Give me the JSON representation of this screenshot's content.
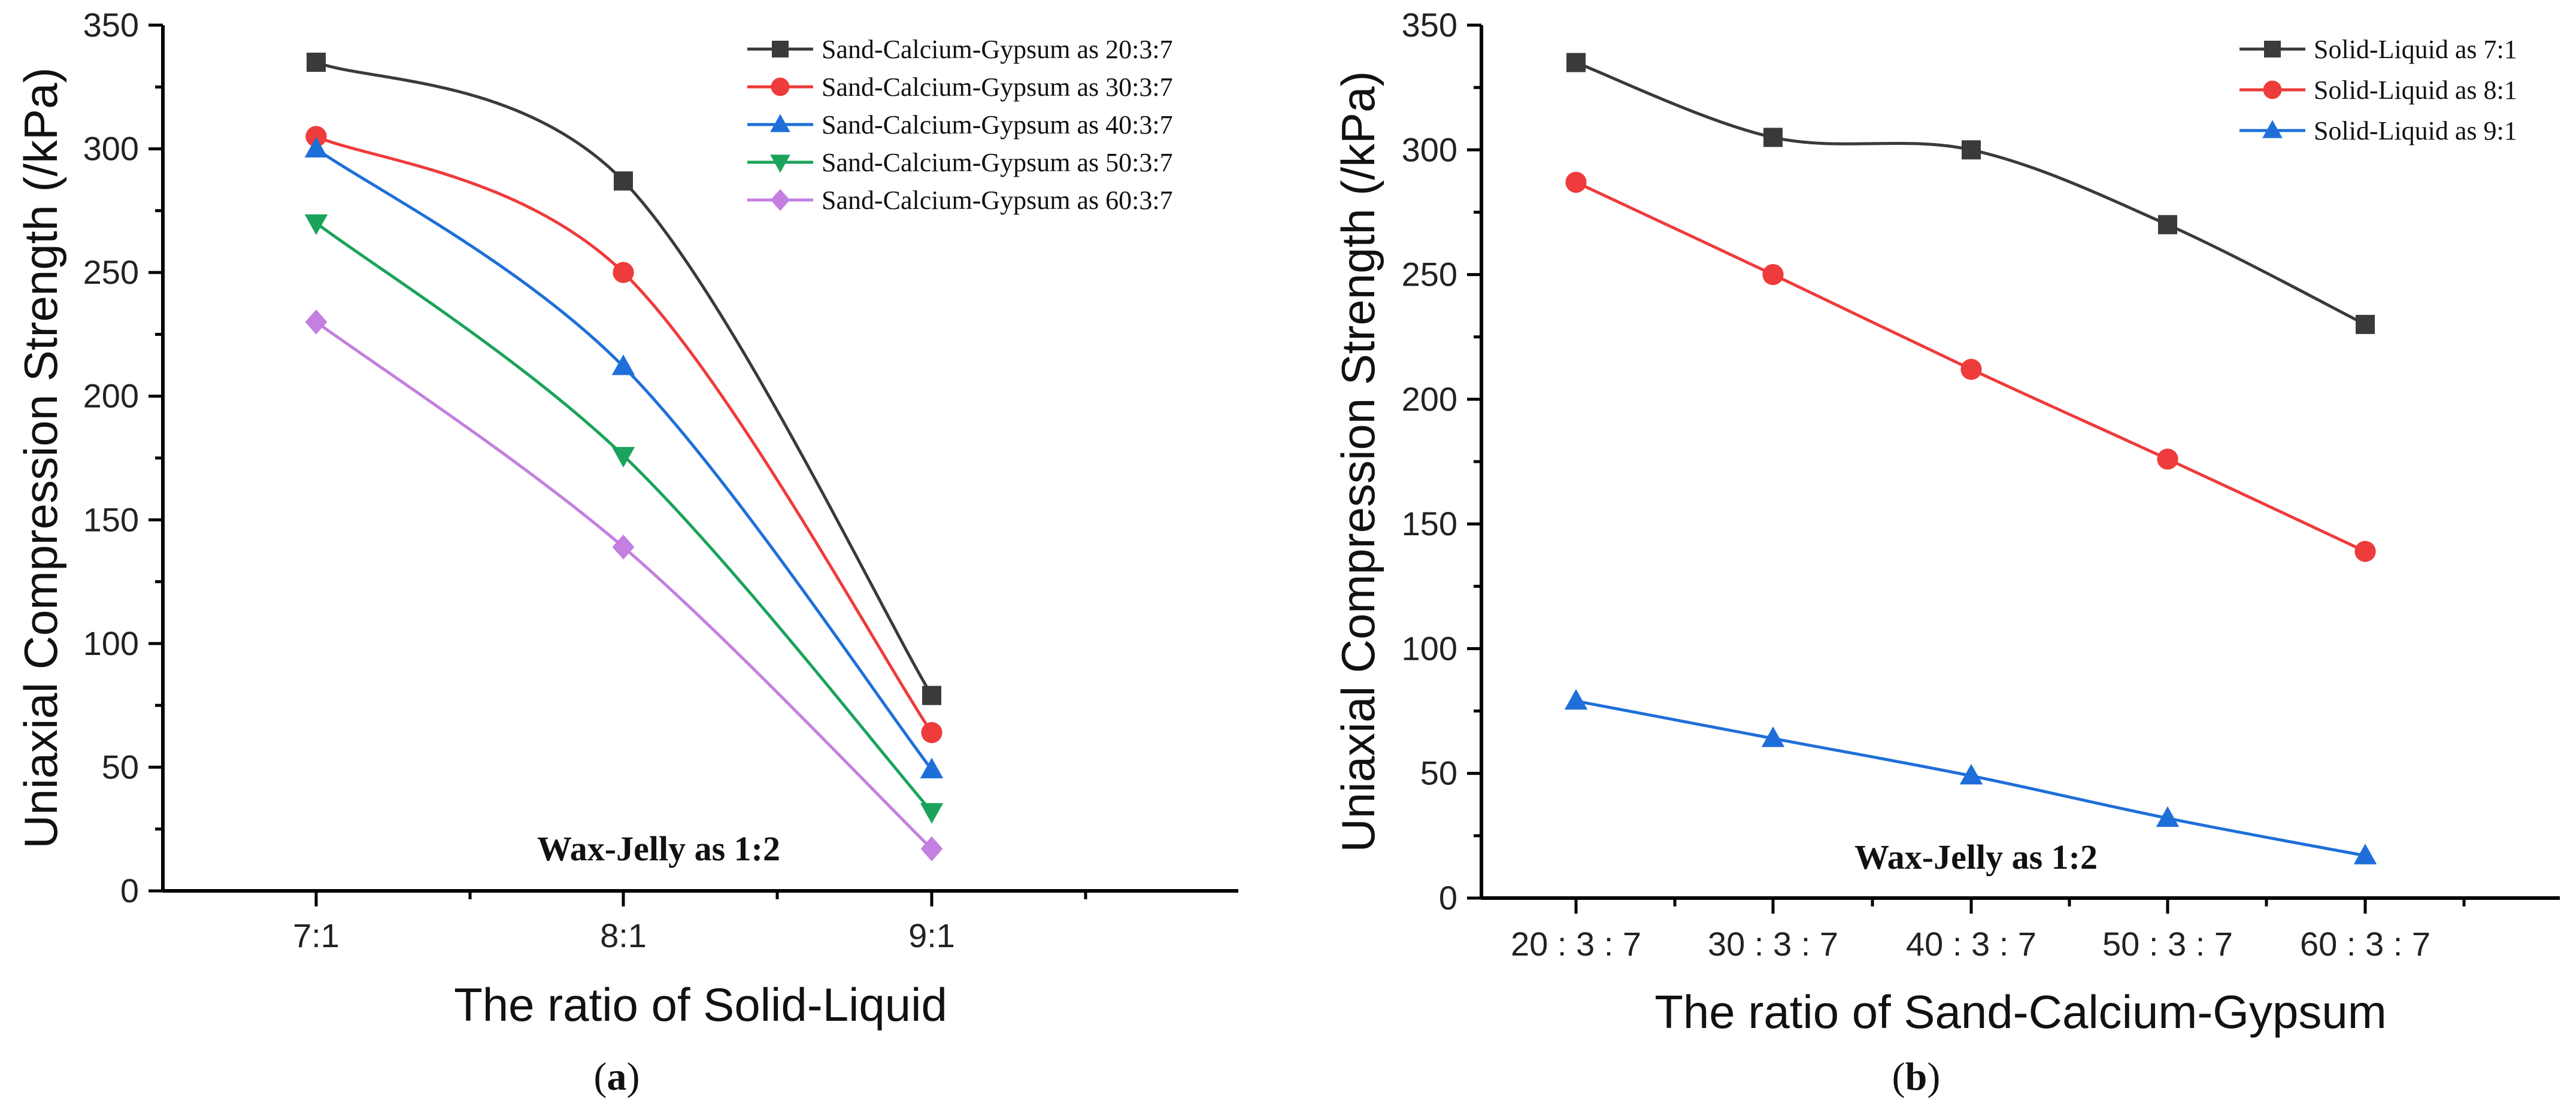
{
  "chart_data": [
    {
      "type": "line",
      "panel": "a",
      "categories": [
        "7:1",
        "8:1",
        "9:1"
      ],
      "xlabel": "The ratio of Solid-Liquid",
      "ylabel": "Uniaxial Compression Strength (/kPa)",
      "ylim": [
        0,
        350
      ],
      "yticks": [
        "0",
        "50",
        "100",
        "150",
        "200",
        "250",
        "300",
        "350"
      ],
      "annotation": "Wax-Jelly as 1:2",
      "legend_position": "top-right",
      "smooth": true,
      "series": [
        {
          "name": "Sand-Calcium-Gypsum as 20:3:7",
          "color": "#3a3a3a",
          "marker": "square",
          "values": [
            335,
            287,
            79
          ]
        },
        {
          "name": "Sand-Calcium-Gypsum as 30:3:7",
          "color": "#ee3b3b",
          "marker": "circle",
          "values": [
            305,
            250,
            64
          ]
        },
        {
          "name": "Sand-Calcium-Gypsum as 40:3:7",
          "color": "#1e6fd9",
          "marker": "triangle-up",
          "values": [
            300,
            212,
            49
          ]
        },
        {
          "name": "Sand-Calcium-Gypsum as 50:3:7",
          "color": "#1aa35a",
          "marker": "triangle-down",
          "values": [
            270,
            176,
            32
          ]
        },
        {
          "name": "Sand-Calcium-Gypsum as 60:3:7",
          "color": "#c47fe0",
          "marker": "diamond",
          "values": [
            230,
            139,
            17
          ]
        }
      ]
    },
    {
      "type": "line",
      "panel": "b",
      "categories": [
        "20 : 3 : 7",
        "30 : 3 : 7",
        "40 : 3 : 7",
        "50 : 3 : 7",
        "60 : 3 : 7"
      ],
      "xlabel": "The ratio of Sand-Calcium-Gypsum",
      "ylabel": "Uniaxial Compression Strength (/kPa)",
      "ylim": [
        0,
        350
      ],
      "yticks": [
        "0",
        "50",
        "100",
        "150",
        "200",
        "250",
        "300",
        "350"
      ],
      "annotation": "Wax-Jelly as 1:2",
      "legend_position": "top-right",
      "smooth": true,
      "series": [
        {
          "name": "Solid-Liquid as 7:1",
          "color": "#3a3a3a",
          "marker": "square",
          "values": [
            335,
            305,
            300,
            270,
            230
          ]
        },
        {
          "name": "Solid-Liquid as 8:1",
          "color": "#ee3b3b",
          "marker": "circle",
          "values": [
            287,
            250,
            212,
            176,
            139
          ]
        },
        {
          "name": "Solid-Liquid as 9:1",
          "color": "#1e6fd9",
          "marker": "triangle-up",
          "values": [
            79,
            64,
            49,
            32,
            17
          ]
        }
      ]
    }
  ],
  "panel_labels": {
    "a": {
      "open": "(",
      "letter": "a",
      "close": ")"
    },
    "b": {
      "open": "(",
      "letter": "b",
      "close": ")"
    }
  }
}
